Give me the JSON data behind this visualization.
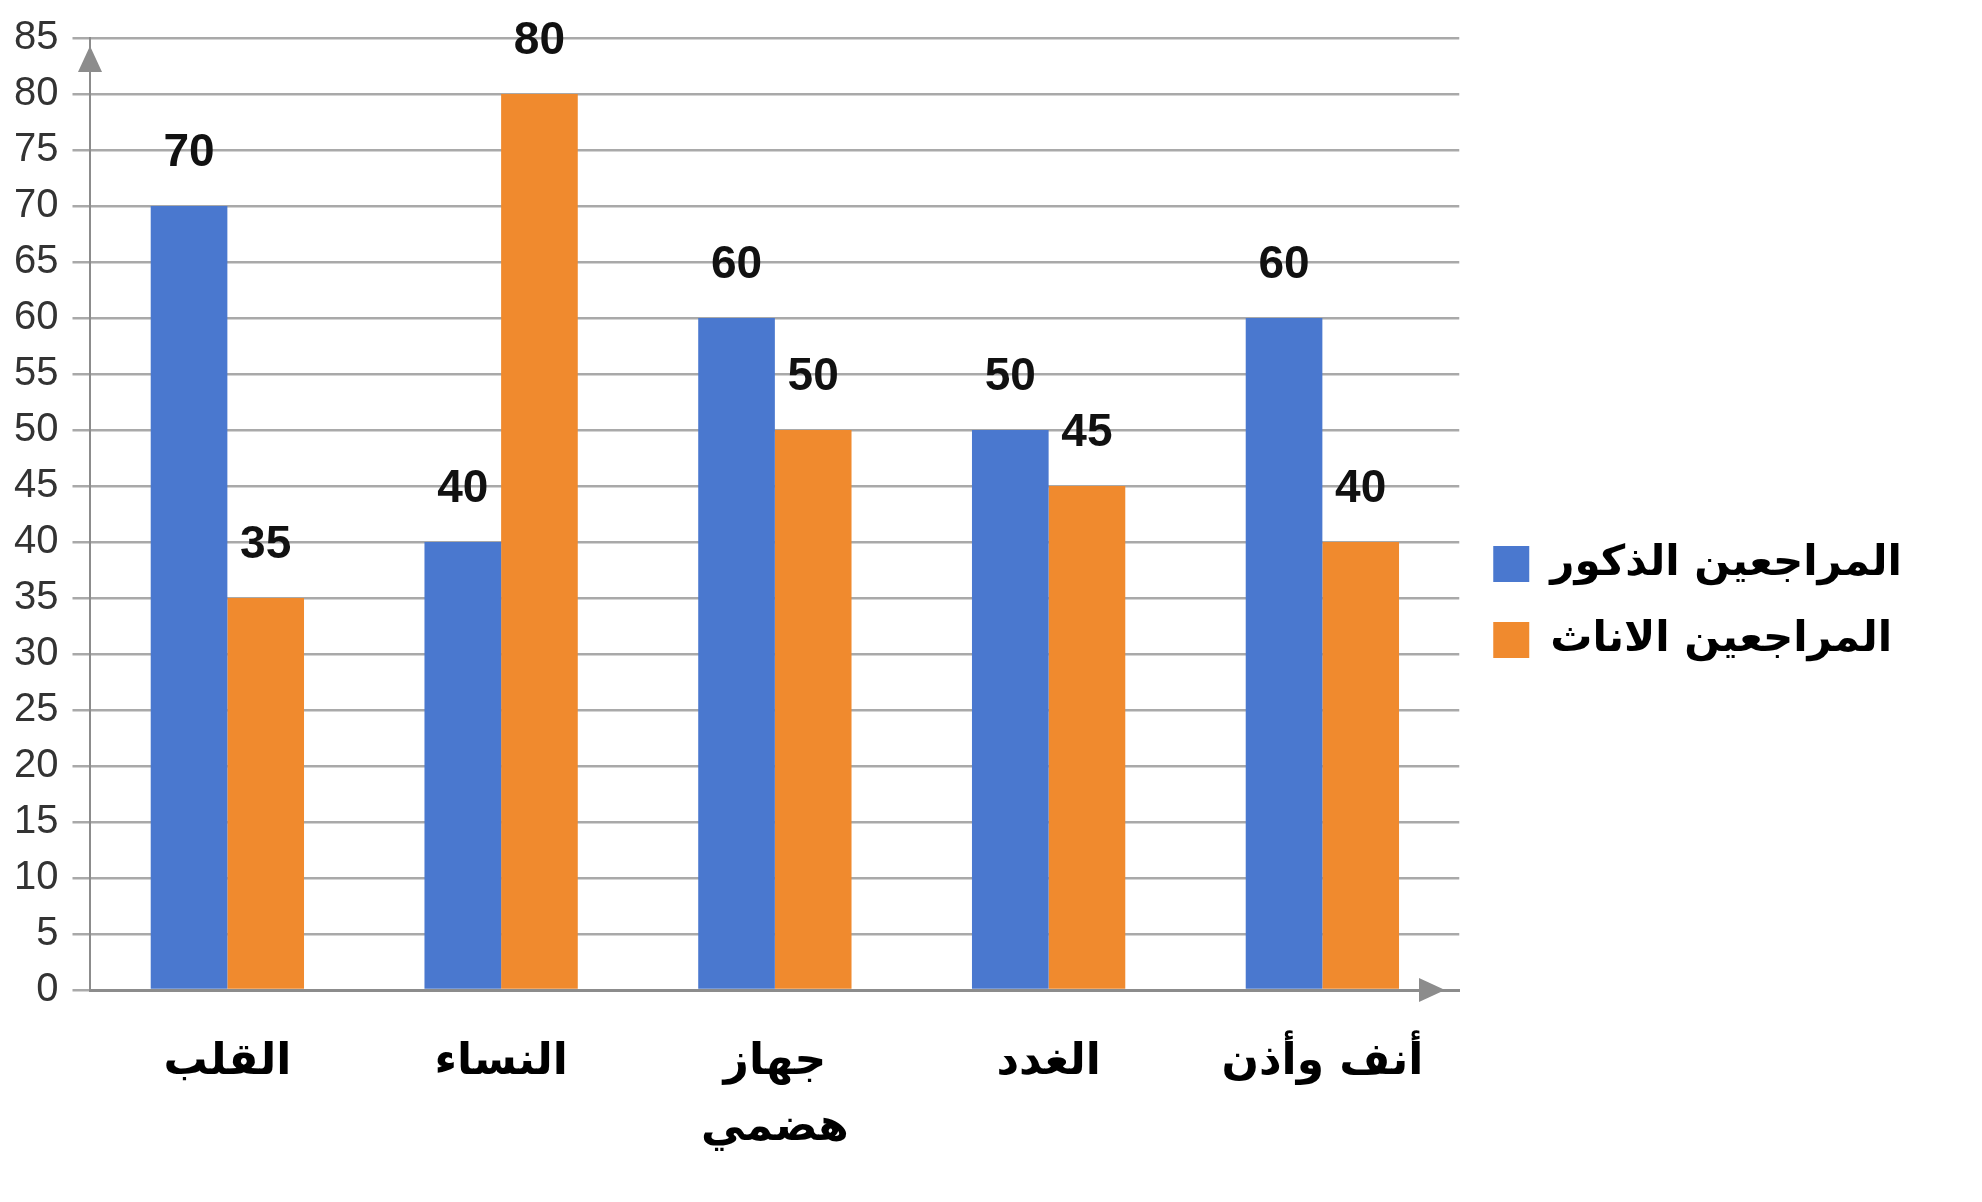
{
  "chart_data": {
    "type": "bar",
    "categories": [
      "القلب",
      "النساء",
      "جهاز هضمي",
      "الغدد",
      "أنف وأذن"
    ],
    "series": [
      {
        "name": "المراجعين الذكور",
        "color": "#4a78cf",
        "values": [
          70,
          40,
          60,
          50,
          60
        ]
      },
      {
        "name": "المراجعين الاناث",
        "color": "#f08a2e",
        "values": [
          35,
          80,
          50,
          45,
          40
        ]
      }
    ],
    "ylim": [
      0,
      85
    ],
    "yticks": [
      0,
      5,
      10,
      15,
      20,
      25,
      30,
      35,
      40,
      45,
      50,
      55,
      60,
      65,
      70,
      75,
      80,
      85
    ],
    "grid": "y",
    "legend": "right",
    "data_labels": true
  }
}
